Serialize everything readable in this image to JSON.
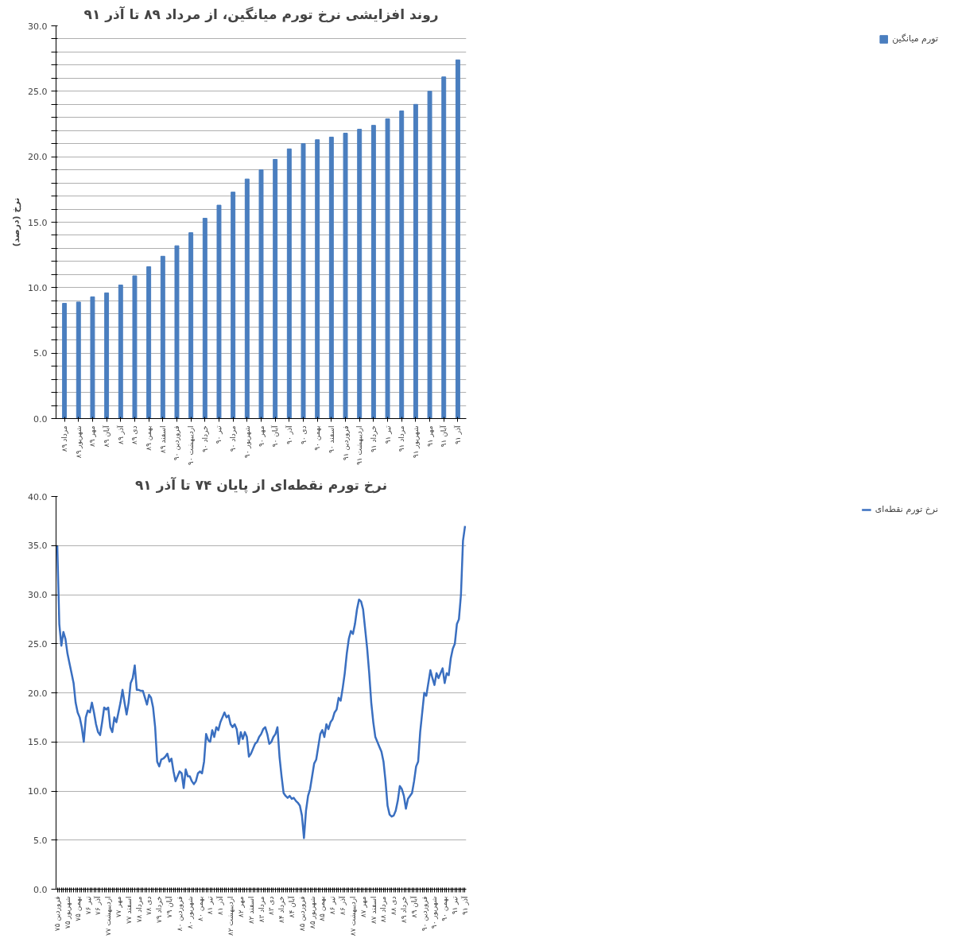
{
  "chart_data": [
    {
      "type": "bar",
      "title": "روند افزایشی نرخ تورم میانگین، از مرداد ۸۹ تا آذر ۹۱",
      "ylabel": "نرخ (درصد)",
      "categories": [
        "مرداد ۸۹",
        "شهریور ۸۹",
        "مهر ۸۹",
        "آبان ۸۹",
        "آذر ۸۹",
        "دی ۸۹",
        "بهمن ۸۹",
        "اسفند ۸۹",
        "فروردین ۹۰",
        "اردیبهشت ۹۰",
        "خرداد ۹۰",
        "تیر ۹۰",
        "مرداد ۹۰",
        "شهریور ۹۰",
        "مهر ۹۰",
        "آبان ۹۰",
        "آذر ۹۰",
        "دی ۹۰",
        "بهمن ۹۰",
        "اسفند ۹۰",
        "فروردین ۹۱",
        "اردیبهشت ۹۱",
        "خرداد ۹۱",
        "تیر ۹۱",
        "مرداد ۹۱",
        "شهریور ۹۱",
        "مهر ۹۱",
        "آبان ۹۱",
        "آذر ۹۱"
      ],
      "series": [
        {
          "name": "تورم میانگین",
          "color": "#4a7ebf",
          "values": [
            8.8,
            8.9,
            9.3,
            9.6,
            10.2,
            10.9,
            11.6,
            12.4,
            13.2,
            14.2,
            15.3,
            16.3,
            17.3,
            18.3,
            19.0,
            19.8,
            20.6,
            21.0,
            21.3,
            21.5,
            21.8,
            22.1,
            22.4,
            22.9,
            23.5,
            24.0,
            25.0,
            26.1,
            27.4
          ]
        }
      ],
      "ylim": [
        0,
        30
      ],
      "yticks": [
        {
          "value": 0,
          "label": "0.0"
        },
        {
          "value": 1,
          "label": null
        },
        {
          "value": 2,
          "label": null
        },
        {
          "value": 3,
          "label": null
        },
        {
          "value": 4,
          "label": null
        },
        {
          "value": 5,
          "label": "5.0"
        },
        {
          "value": 6,
          "label": null
        },
        {
          "value": 7,
          "label": null
        },
        {
          "value": 8,
          "label": null
        },
        {
          "value": 9,
          "label": null
        },
        {
          "value": 10,
          "label": "10.0"
        },
        {
          "value": 11,
          "label": null
        },
        {
          "value": 12,
          "label": null
        },
        {
          "value": 13,
          "label": null
        },
        {
          "value": 14,
          "label": null
        },
        {
          "value": 15,
          "label": "15.0"
        },
        {
          "value": 16,
          "label": null
        },
        {
          "value": 17,
          "label": null
        },
        {
          "value": 18,
          "label": null
        },
        {
          "value": 19,
          "label": null
        },
        {
          "value": 20,
          "label": "20.0"
        },
        {
          "value": 21,
          "label": null
        },
        {
          "value": 22,
          "label": null
        },
        {
          "value": 23,
          "label": null
        },
        {
          "value": 24,
          "label": null
        },
        {
          "value": 25,
          "label": "25.0"
        },
        {
          "value": 26,
          "label": null
        },
        {
          "value": 27,
          "label": null
        },
        {
          "value": 28,
          "label": null
        },
        {
          "value": 29,
          "label": null
        },
        {
          "value": 30,
          "label": "30.0"
        }
      ],
      "grid": "y",
      "legend": "right"
    },
    {
      "type": "line",
      "title": "نرخ تورم نقطه‌ای از پایان ۷۴ تا آذر ۹۱",
      "categories": [
        "فروردین ۷۵",
        null,
        null,
        null,
        null,
        "شهریور ۷۵",
        null,
        null,
        null,
        null,
        "بهمن ۷۵",
        null,
        null,
        null,
        null,
        "تیر ۷۶",
        null,
        null,
        null,
        null,
        "آذر ۷۶",
        null,
        null,
        null,
        null,
        "اردیبهشت ۷۷",
        null,
        null,
        null,
        null,
        "مهر ۷۷",
        null,
        null,
        null,
        null,
        "اسفند ۷۷",
        null,
        null,
        null,
        null,
        "مرداد ۷۸",
        null,
        null,
        null,
        null,
        "دی ۷۸",
        null,
        null,
        null,
        null,
        "خرداد ۷۹",
        null,
        null,
        null,
        null,
        "آبان ۷۹",
        null,
        null,
        null,
        null,
        "فروردین ۸۰",
        null,
        null,
        null,
        null,
        "شهریور ۸۰",
        null,
        null,
        null,
        null,
        "بهمن ۸۰",
        null,
        null,
        null,
        null,
        "تیر ۸۱",
        null,
        null,
        null,
        null,
        "آذر ۸۱",
        null,
        null,
        null,
        null,
        "اردیبهشت ۸۲",
        null,
        null,
        null,
        null,
        "مهر ۸۲",
        null,
        null,
        null,
        null,
        "اسفند ۸۲",
        null,
        null,
        null,
        null,
        "مرداد ۸۳",
        null,
        null,
        null,
        null,
        "دی ۸۳",
        null,
        null,
        null,
        null,
        "خرداد ۸۴",
        null,
        null,
        null,
        null,
        "آبان ۸۴",
        null,
        null,
        null,
        null,
        "فروردین ۸۵",
        null,
        null,
        null,
        null,
        "شهریور ۸۵",
        null,
        null,
        null,
        null,
        "بهمن ۸۵",
        null,
        null,
        null,
        null,
        "تیر ۸۶",
        null,
        null,
        null,
        null,
        "آذر ۸۶",
        null,
        null,
        null,
        null,
        "اردیبهشت ۸۷",
        null,
        null,
        null,
        null,
        "مهر ۸۷",
        null,
        null,
        null,
        null,
        "اسفند ۸۷",
        null,
        null,
        null,
        null,
        "مرداد ۸۸",
        null,
        null,
        null,
        null,
        "دی ۸۸",
        null,
        null,
        null,
        null,
        "خرداد ۸۹",
        null,
        null,
        null,
        null,
        "آبان ۸۹",
        null,
        null,
        null,
        null,
        "فروردین ۹۰",
        null,
        null,
        null,
        null,
        "شهریور ۹۰",
        null,
        null,
        null,
        null,
        "بهمن ۹۰",
        null,
        null,
        null,
        null,
        "تیر ۹۱",
        null,
        null,
        null,
        null,
        "آذر ۹۱"
      ],
      "series": [
        {
          "name": "نرخ تورم نقطه‌ای",
          "color": "#3a6fc0",
          "values": [
            35.0,
            27,
            24.8,
            26.2,
            25.5,
            24,
            23,
            22,
            21,
            19,
            18,
            17.5,
            16.5,
            15,
            17.5,
            18.2,
            18,
            19,
            18,
            16.8,
            16,
            15.7,
            17,
            18.5,
            18.3,
            18.5,
            16.5,
            16.0,
            17.5,
            17,
            18,
            19,
            20.3,
            19,
            17.8,
            19,
            21,
            21.5,
            22.8,
            20.3,
            20.3,
            20.2,
            20.2,
            19.5,
            18.8,
            19.8,
            19.5,
            18.5,
            16.5,
            13,
            12.5,
            13.2,
            13.3,
            13.5,
            13.8,
            13,
            13.3,
            12,
            11,
            11.5,
            12,
            11.8,
            10.3,
            12.2,
            11.5,
            11.5,
            11,
            10.7,
            11,
            11.8,
            12,
            11.8,
            13,
            15.8,
            15.2,
            15,
            16.2,
            15.5,
            16.5,
            16.2,
            17,
            17.5,
            18,
            17.5,
            17.7,
            16.8,
            16.5,
            16.8,
            16.3,
            14.8,
            16,
            15.3,
            16,
            15.5,
            13.5,
            13.8,
            14.3,
            14.8,
            15,
            15.5,
            15.8,
            16.3,
            16.5,
            15.8,
            14.8,
            15,
            15.5,
            15.8,
            16.5,
            13.5,
            11.5,
            9.8,
            9.5,
            9.3,
            9.5,
            9.2,
            9.3,
            9.0,
            8.8,
            8.5,
            7.5,
            5.2,
            8.0,
            9.5,
            10.2,
            11.5,
            12.8,
            13.2,
            14.5,
            15.8,
            16.2,
            15.5,
            16.8,
            16.3,
            17,
            17.3,
            18,
            18.3,
            19.5,
            19.2,
            20.5,
            22,
            24,
            25.5,
            26.3,
            26.0,
            27,
            28.5,
            29.5,
            29.3,
            28.5,
            26.5,
            24.5,
            22,
            19,
            17,
            15.5,
            15.0,
            14.5,
            14,
            13,
            11,
            8.5,
            7.6,
            7.4,
            7.5,
            8.0,
            9.0,
            10.5,
            10.2,
            9.5,
            8.2,
            9.2,
            9.5,
            9.8,
            11,
            12.5,
            13,
            16,
            18,
            20,
            19.7,
            21,
            22.3,
            21.5,
            20.8,
            22,
            21.5,
            22,
            22.5,
            21,
            22,
            21.8,
            23.5,
            24.5,
            25,
            27,
            27.5,
            30,
            35.5,
            37
          ]
        }
      ],
      "ylim": [
        0,
        40
      ],
      "yticks": [
        {
          "value": 0,
          "label": "0.0"
        },
        {
          "value": 5,
          "label": "5.0"
        },
        {
          "value": 10,
          "label": "10.0"
        },
        {
          "value": 15,
          "label": "15.0"
        },
        {
          "value": 20,
          "label": "20.0"
        },
        {
          "value": 25,
          "label": "25.0"
        },
        {
          "value": 30,
          "label": "30.0"
        },
        {
          "value": 35,
          "label": "35.0"
        },
        {
          "value": 40,
          "label": "40.0"
        }
      ],
      "grid": "y",
      "legend": "right",
      "marker": "none",
      "line_style": "solid"
    }
  ]
}
